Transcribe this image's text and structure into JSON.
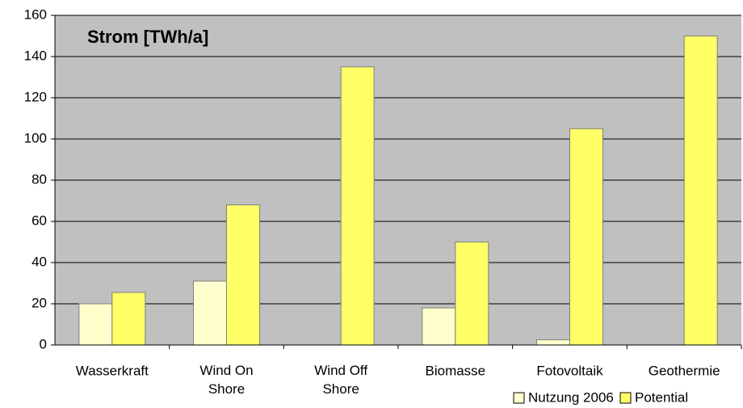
{
  "chart_data": {
    "type": "bar",
    "title": "Strom [TWh/a]",
    "categories": [
      "Wasserkraft",
      "Wind On\nShore",
      "Wind Off\nShore",
      "Biomasse",
      "Fotovoltaik",
      "Geothermie"
    ],
    "series": [
      {
        "name": "Nutzung 2006",
        "color": "#ffffcc",
        "values": [
          20,
          31,
          0,
          18,
          2.5,
          0
        ]
      },
      {
        "name": "Potential",
        "color": "#ffff66",
        "values": [
          25.5,
          68,
          135,
          50,
          105,
          150
        ]
      }
    ],
    "ylim": [
      0,
      160
    ],
    "yticks": [
      0,
      20,
      40,
      60,
      80,
      100,
      120,
      140,
      160
    ],
    "grid": true,
    "legend": "bottom-right"
  }
}
